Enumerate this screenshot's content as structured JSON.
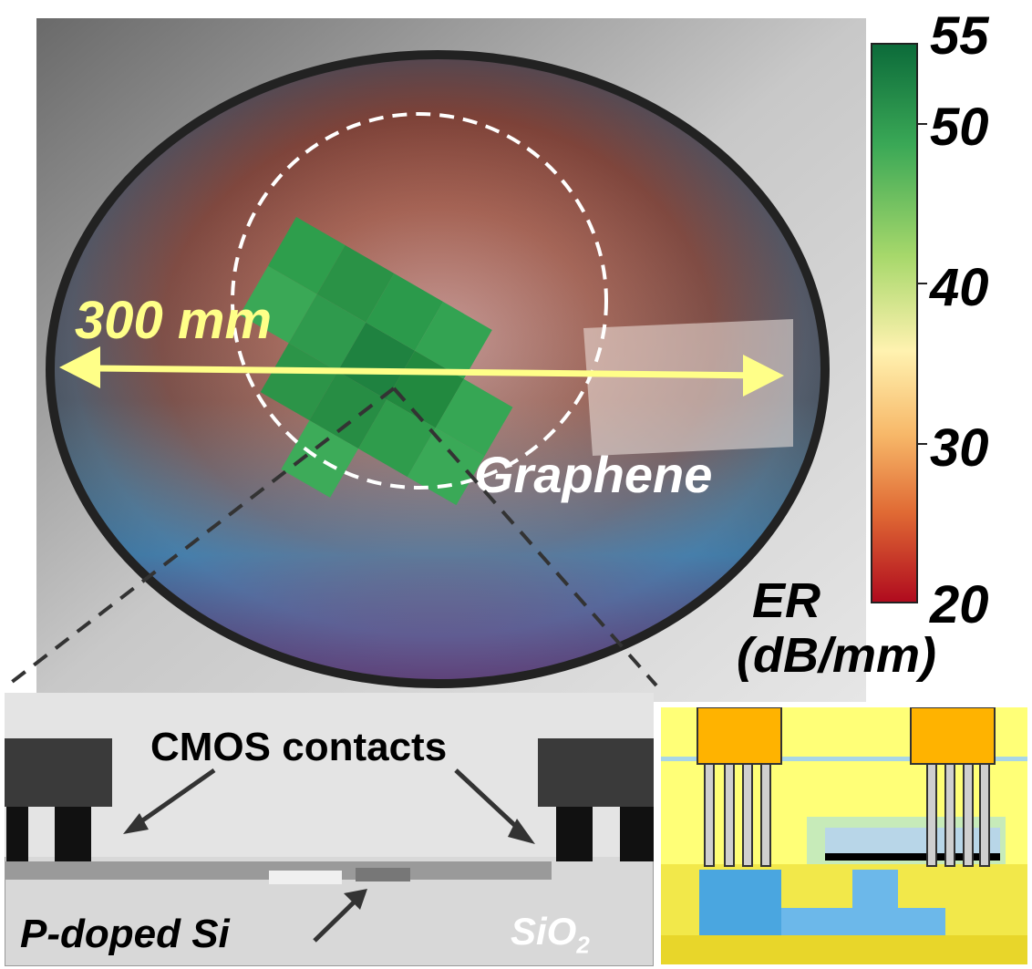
{
  "figure": {
    "wafer_size_label": "300 mm",
    "graphene_label": "Graphene",
    "colorbar": {
      "title_line1": "ER",
      "title_line2": "(dB/mm)",
      "ticks": [
        "55",
        "50",
        "40",
        "30",
        "20"
      ],
      "min": 20,
      "max": 55,
      "colors": {
        "low": "#b00b1e",
        "mid_low": "#f08a3c",
        "mid": "#fff2b0",
        "mid_high": "#7fcf55",
        "high": "#0c6b3a"
      }
    },
    "tem_panel": {
      "contacts_label": "CMOS contacts",
      "silicon_label": "P-doped Si",
      "oxide_label_base": "SiO",
      "oxide_label_sub": "2"
    },
    "heatmap_tile_color": "#2e9e4c",
    "arrow_color": "#ffff88",
    "dashed_circle_color": "#ffffff"
  }
}
